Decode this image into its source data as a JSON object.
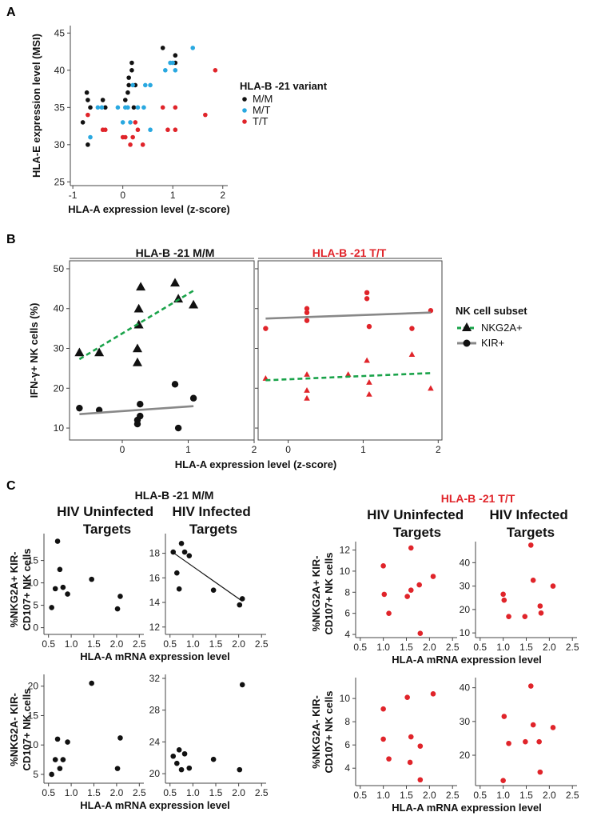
{
  "panels": {
    "A": {
      "letter": "A"
    },
    "B": {
      "letter": "B"
    },
    "C": {
      "letter": "C"
    }
  },
  "colors": {
    "mm": "#111111",
    "mt": "#29a8e0",
    "tt": "#e0242a",
    "nkg2a": "#1aa34a",
    "kir": "#888888"
  },
  "panelA": {
    "legend": {
      "title": "HLA-B -21 variant",
      "items": [
        "M/M",
        "M/T",
        "T/T"
      ]
    }
  },
  "panelB": {
    "facets": [
      "HLA-B -21 M/M",
      "HLA-B -21 T/T"
    ],
    "legend": {
      "title": "NK cell subset",
      "items": [
        "NKG2A+",
        "KIR+"
      ]
    }
  },
  "panelC": {
    "group_titles": [
      "HLA-B -21 M/M",
      "HLA-B -21 T/T"
    ],
    "col_titles": [
      "HIV Uninfected Targets",
      "HIV Infected Targets",
      "HIV Uninfected Targets",
      "HIV Infected Targets"
    ],
    "row_ylabels": [
      [
        "%NKG2A+ KIR-",
        "CD107+ NK cells"
      ],
      [
        "%NKG2A- KIR-",
        "CD107+ NK cells"
      ]
    ]
  },
  "chart_data": [
    {
      "id": "A",
      "type": "scatter",
      "title": "",
      "xlabel": "HLA-A expression level (z-score)",
      "ylabel": "HLA-E expression level (MSI)",
      "xlim": [
        -1.05,
        2.1
      ],
      "ylim": [
        24.5,
        46
      ],
      "xticks": [
        -1,
        0,
        1,
        2
      ],
      "yticks": [
        25,
        30,
        35,
        40,
        45
      ],
      "series": [
        {
          "name": "M/M",
          "color": "#111111",
          "points": [
            [
              -0.8,
              33
            ],
            [
              -0.7,
              30
            ],
            [
              -0.65,
              35
            ],
            [
              -0.7,
              36
            ],
            [
              -0.72,
              37
            ],
            [
              -0.4,
              36
            ],
            [
              -0.35,
              35
            ],
            [
              0.05,
              36
            ],
            [
              0.1,
              37
            ],
            [
              0.12,
              38
            ],
            [
              0.12,
              39
            ],
            [
              0.18,
              40
            ],
            [
              0.18,
              41
            ],
            [
              0.22,
              35
            ],
            [
              0.25,
              38
            ],
            [
              0.8,
              43
            ],
            [
              1.05,
              41
            ],
            [
              1.05,
              42
            ]
          ]
        },
        {
          "name": "M/T",
          "color": "#29a8e0",
          "points": [
            [
              -0.65,
              31
            ],
            [
              -0.5,
              35
            ],
            [
              -0.42,
              35
            ],
            [
              -0.1,
              35
            ],
            [
              0,
              33
            ],
            [
              0.05,
              35
            ],
            [
              0.1,
              35
            ],
            [
              0.15,
              33
            ],
            [
              0.2,
              38
            ],
            [
              0.3,
              35
            ],
            [
              0.42,
              35
            ],
            [
              0.45,
              38
            ],
            [
              0.55,
              38
            ],
            [
              0.55,
              32
            ],
            [
              0.85,
              40
            ],
            [
              0.95,
              41
            ],
            [
              1,
              41
            ],
            [
              1.05,
              40
            ],
            [
              1.4,
              43
            ]
          ]
        },
        {
          "name": "T/T",
          "color": "#e0242a",
          "points": [
            [
              -0.7,
              34
            ],
            [
              -0.4,
              32
            ],
            [
              -0.35,
              32
            ],
            [
              0,
              31
            ],
            [
              0.05,
              31
            ],
            [
              0.15,
              30
            ],
            [
              0.2,
              31
            ],
            [
              0.25,
              33
            ],
            [
              0.3,
              32
            ],
            [
              0.4,
              30
            ],
            [
              0.8,
              35
            ],
            [
              0.9,
              32
            ],
            [
              1.05,
              35
            ],
            [
              1.05,
              32
            ],
            [
              1.65,
              34
            ],
            [
              1.85,
              40
            ]
          ]
        }
      ]
    },
    {
      "id": "B-MM",
      "type": "scatter",
      "title": "HLA-B -21 M/M",
      "xlabel": "HLA-A expression level (z-score)",
      "ylabel": "IFN-γ+ NK cells (%)",
      "xlim": [
        -0.8,
        2.0
      ],
      "ylim": [
        7,
        52
      ],
      "xticks": [
        0,
        1,
        2
      ],
      "yticks": [
        10,
        20,
        30,
        40,
        50
      ],
      "series": [
        {
          "name": "NKG2A+",
          "marker": "triangle",
          "points": [
            [
              -0.65,
              29
            ],
            [
              -0.35,
              29
            ],
            [
              0.23,
              26.5
            ],
            [
              0.23,
              30
            ],
            [
              0.25,
              36
            ],
            [
              0.25,
              40
            ],
            [
              0.28,
              45.5
            ],
            [
              0.8,
              46.5
            ],
            [
              0.85,
              42.5
            ],
            [
              1.08,
              41
            ]
          ],
          "fit": [
            [
              -0.65,
              27.3
            ],
            [
              1.08,
              44.5
            ]
          ]
        },
        {
          "name": "KIR+",
          "marker": "circle",
          "points": [
            [
              -0.65,
              15
            ],
            [
              -0.35,
              14.5
            ],
            [
              0.23,
              12
            ],
            [
              0.23,
              11
            ],
            [
              0.27,
              13
            ],
            [
              0.27,
              16
            ],
            [
              0.8,
              21
            ],
            [
              0.85,
              10
            ],
            [
              1.08,
              17.5
            ]
          ],
          "fit": [
            [
              -0.65,
              13.5
            ],
            [
              1.08,
              15.5
            ]
          ]
        }
      ]
    },
    {
      "id": "B-TT",
      "type": "scatter",
      "title": "HLA-B -21 T/T",
      "xlabel": "HLA-A expression level (z-score)",
      "ylabel": "",
      "xlim": [
        -0.4,
        2.05
      ],
      "ylim": [
        7,
        52
      ],
      "xticks": [
        0,
        1,
        2
      ],
      "yticks": [
        10,
        20,
        30,
        40,
        50
      ],
      "series": [
        {
          "name": "NKG2A+",
          "marker": "triangle",
          "points": [
            [
              -0.3,
              22.5
            ],
            [
              0.25,
              23.5
            ],
            [
              0.25,
              19.5
            ],
            [
              0.25,
              17.5
            ],
            [
              0.8,
              23.5
            ],
            [
              1.05,
              27
            ],
            [
              1.08,
              21.5
            ],
            [
              1.08,
              18.5
            ],
            [
              1.65,
              28.5
            ],
            [
              1.9,
              20
            ]
          ],
          "fit": [
            [
              -0.3,
              22
            ],
            [
              1.9,
              23.8
            ]
          ]
        },
        {
          "name": "KIR+",
          "marker": "circle",
          "points": [
            [
              -0.3,
              35
            ],
            [
              0.25,
              40
            ],
            [
              0.25,
              37
            ],
            [
              0.25,
              39
            ],
            [
              1.05,
              44
            ],
            [
              1.05,
              42.5
            ],
            [
              1.08,
              35.5
            ],
            [
              1.65,
              35
            ],
            [
              1.9,
              39.5
            ]
          ],
          "fit": [
            [
              -0.3,
              37.5
            ],
            [
              1.9,
              39
            ]
          ]
        }
      ]
    },
    {
      "id": "C-MM-uninf-NKG2A+",
      "type": "scatter",
      "group": "HLA-B -21 M/M",
      "title": "HIV Uninfected Targets",
      "xlabel": "",
      "ylabel": "%NKG2A+ KIR- CD107+ NK cells",
      "color": "#111111",
      "xlim": [
        0.4,
        2.6
      ],
      "ylim": [
        -1.5,
        21
      ],
      "xticks": [
        0.5,
        1.0,
        1.5,
        2.0,
        2.5
      ],
      "yticks": [
        0,
        5,
        10,
        15
      ],
      "points": [
        [
          0.57,
          4.5
        ],
        [
          0.65,
          8.7
        ],
        [
          0.7,
          19.3
        ],
        [
          0.75,
          13
        ],
        [
          0.82,
          9
        ],
        [
          0.92,
          7.5
        ],
        [
          1.45,
          10.8
        ],
        [
          2.02,
          4.2
        ],
        [
          2.08,
          7
        ]
      ]
    },
    {
      "id": "C-MM-inf-NKG2A+",
      "type": "scatter",
      "group": "HLA-B -21 M/M",
      "title": "HIV Infected Targets",
      "xlabel": "HLA-A mRNA expression level",
      "ylabel": "",
      "color": "#111111",
      "xlim": [
        0.4,
        2.6
      ],
      "ylim": [
        11.4,
        19.6
      ],
      "xticks": [
        0.5,
        1.0,
        1.5,
        2.0,
        2.5
      ],
      "yticks": [
        12,
        14,
        16,
        18
      ],
      "points": [
        [
          0.57,
          18.1
        ],
        [
          0.65,
          16.4
        ],
        [
          0.7,
          15.1
        ],
        [
          0.75,
          18.8
        ],
        [
          0.82,
          18.1
        ],
        [
          0.92,
          17.8
        ],
        [
          1.45,
          15
        ],
        [
          2.02,
          13.8
        ],
        [
          2.08,
          14.3
        ]
      ],
      "fit": [
        [
          0.57,
          18.05
        ],
        [
          2.08,
          14.1
        ]
      ]
    },
    {
      "id": "C-MM-uninf-NKG2A-",
      "type": "scatter",
      "group": "HLA-B -21 M/M",
      "title": "",
      "xlabel": "HLA-A mRNA expression level",
      "ylabel": "%NKG2A- KIR- CD107+ NK cells",
      "color": "#111111",
      "xlim": [
        0.4,
        2.6
      ],
      "ylim": [
        3.5,
        22
      ],
      "xticks": [
        0.5,
        1.0,
        1.5,
        2.0,
        2.5
      ],
      "yticks": [
        5,
        10,
        15,
        20
      ],
      "points": [
        [
          0.57,
          5
        ],
        [
          0.65,
          7.5
        ],
        [
          0.7,
          11
        ],
        [
          0.75,
          6
        ],
        [
          0.82,
          7.5
        ],
        [
          0.92,
          10.5
        ],
        [
          1.45,
          20.5
        ],
        [
          2.02,
          6
        ],
        [
          2.08,
          11.2
        ]
      ]
    },
    {
      "id": "C-MM-inf-NKG2A-",
      "type": "scatter",
      "group": "HLA-B -21 M/M",
      "title": "",
      "xlabel": "",
      "ylabel": "",
      "color": "#111111",
      "xlim": [
        0.4,
        2.6
      ],
      "ylim": [
        18.8,
        32.5
      ],
      "xticks": [
        0.5,
        1.0,
        1.5,
        2.0,
        2.5
      ],
      "yticks": [
        20,
        24,
        28,
        32
      ],
      "points": [
        [
          0.57,
          22.2
        ],
        [
          0.65,
          21.3
        ],
        [
          0.7,
          23
        ],
        [
          0.75,
          20.5
        ],
        [
          0.82,
          22.5
        ],
        [
          0.92,
          20.7
        ],
        [
          1.45,
          21.8
        ],
        [
          2.02,
          20.5
        ],
        [
          2.08,
          31.2
        ]
      ]
    },
    {
      "id": "C-TT-uninf-NKG2A+",
      "type": "scatter",
      "group": "HLA-B -21 T/T",
      "title": "HIV Uninfected Targets",
      "xlabel": "HLA-A mRNA expression level",
      "ylabel": "%NKG2A+ KIR- CD107+ NK cells",
      "color": "#e0242a",
      "xlim": [
        0.4,
        2.6
      ],
      "ylim": [
        3.7,
        12.8
      ],
      "xticks": [
        0.5,
        1.0,
        1.5,
        2.0,
        2.5
      ],
      "yticks": [
        4,
        6,
        8,
        10,
        12
      ],
      "points": [
        [
          1.0,
          10.5
        ],
        [
          1.02,
          7.8
        ],
        [
          1.12,
          6
        ],
        [
          1.52,
          7.6
        ],
        [
          1.6,
          8.2
        ],
        [
          1.6,
          12.2
        ],
        [
          1.78,
          8.7
        ],
        [
          1.8,
          4.1
        ],
        [
          2.08,
          9.5
        ]
      ]
    },
    {
      "id": "C-TT-inf-NKG2A+",
      "type": "scatter",
      "group": "HLA-B -21 T/T",
      "title": "HIV Infected Targets",
      "xlabel": "",
      "ylabel": "",
      "color": "#e0242a",
      "xlim": [
        0.4,
        2.6
      ],
      "ylim": [
        8,
        49
      ],
      "xticks": [
        0.5,
        1.0,
        1.5,
        2.0,
        2.5
      ],
      "yticks": [
        10,
        20,
        30,
        40
      ],
      "points": [
        [
          1.0,
          26.5
        ],
        [
          1.02,
          24
        ],
        [
          1.12,
          17
        ],
        [
          1.47,
          17
        ],
        [
          1.6,
          47.5
        ],
        [
          1.65,
          32.5
        ],
        [
          1.8,
          21.5
        ],
        [
          1.82,
          18.5
        ],
        [
          2.08,
          30
        ]
      ]
    },
    {
      "id": "C-TT-uninf-NKG2A-",
      "type": "scatter",
      "group": "HLA-B -21 T/T",
      "title": "",
      "xlabel": "HLA-A mRNA expression level",
      "ylabel": "%NKG2A- KIR- CD107+ NK cells",
      "color": "#e0242a",
      "xlim": [
        0.4,
        2.6
      ],
      "ylim": [
        2.5,
        11.8
      ],
      "xticks": [
        0.5,
        1.0,
        1.5,
        2.0,
        2.5
      ],
      "yticks": [
        4,
        6,
        8,
        10
      ],
      "points": [
        [
          1.0,
          9.1
        ],
        [
          1.0,
          6.5
        ],
        [
          1.12,
          4.8
        ],
        [
          1.52,
          10.1
        ],
        [
          1.6,
          6.7
        ],
        [
          1.58,
          4.5
        ],
        [
          1.8,
          5.9
        ],
        [
          1.8,
          3
        ],
        [
          2.08,
          10.4
        ]
      ]
    },
    {
      "id": "C-TT-inf-NKG2A-",
      "type": "scatter",
      "group": "HLA-B -21 T/T",
      "title": "",
      "xlabel": "HLA-A mRNA expression level",
      "ylabel": "",
      "color": "#e0242a",
      "xlim": [
        0.4,
        2.6
      ],
      "ylim": [
        11,
        43
      ],
      "xticks": [
        0.5,
        1.0,
        1.5,
        2.0,
        2.5
      ],
      "yticks": [
        20,
        30,
        40
      ],
      "points": [
        [
          1.0,
          12.5
        ],
        [
          1.02,
          31.5
        ],
        [
          1.12,
          23.5
        ],
        [
          1.48,
          24
        ],
        [
          1.6,
          40.5
        ],
        [
          1.65,
          29
        ],
        [
          1.78,
          24
        ],
        [
          1.8,
          15
        ],
        [
          2.08,
          28.2
        ]
      ]
    }
  ]
}
